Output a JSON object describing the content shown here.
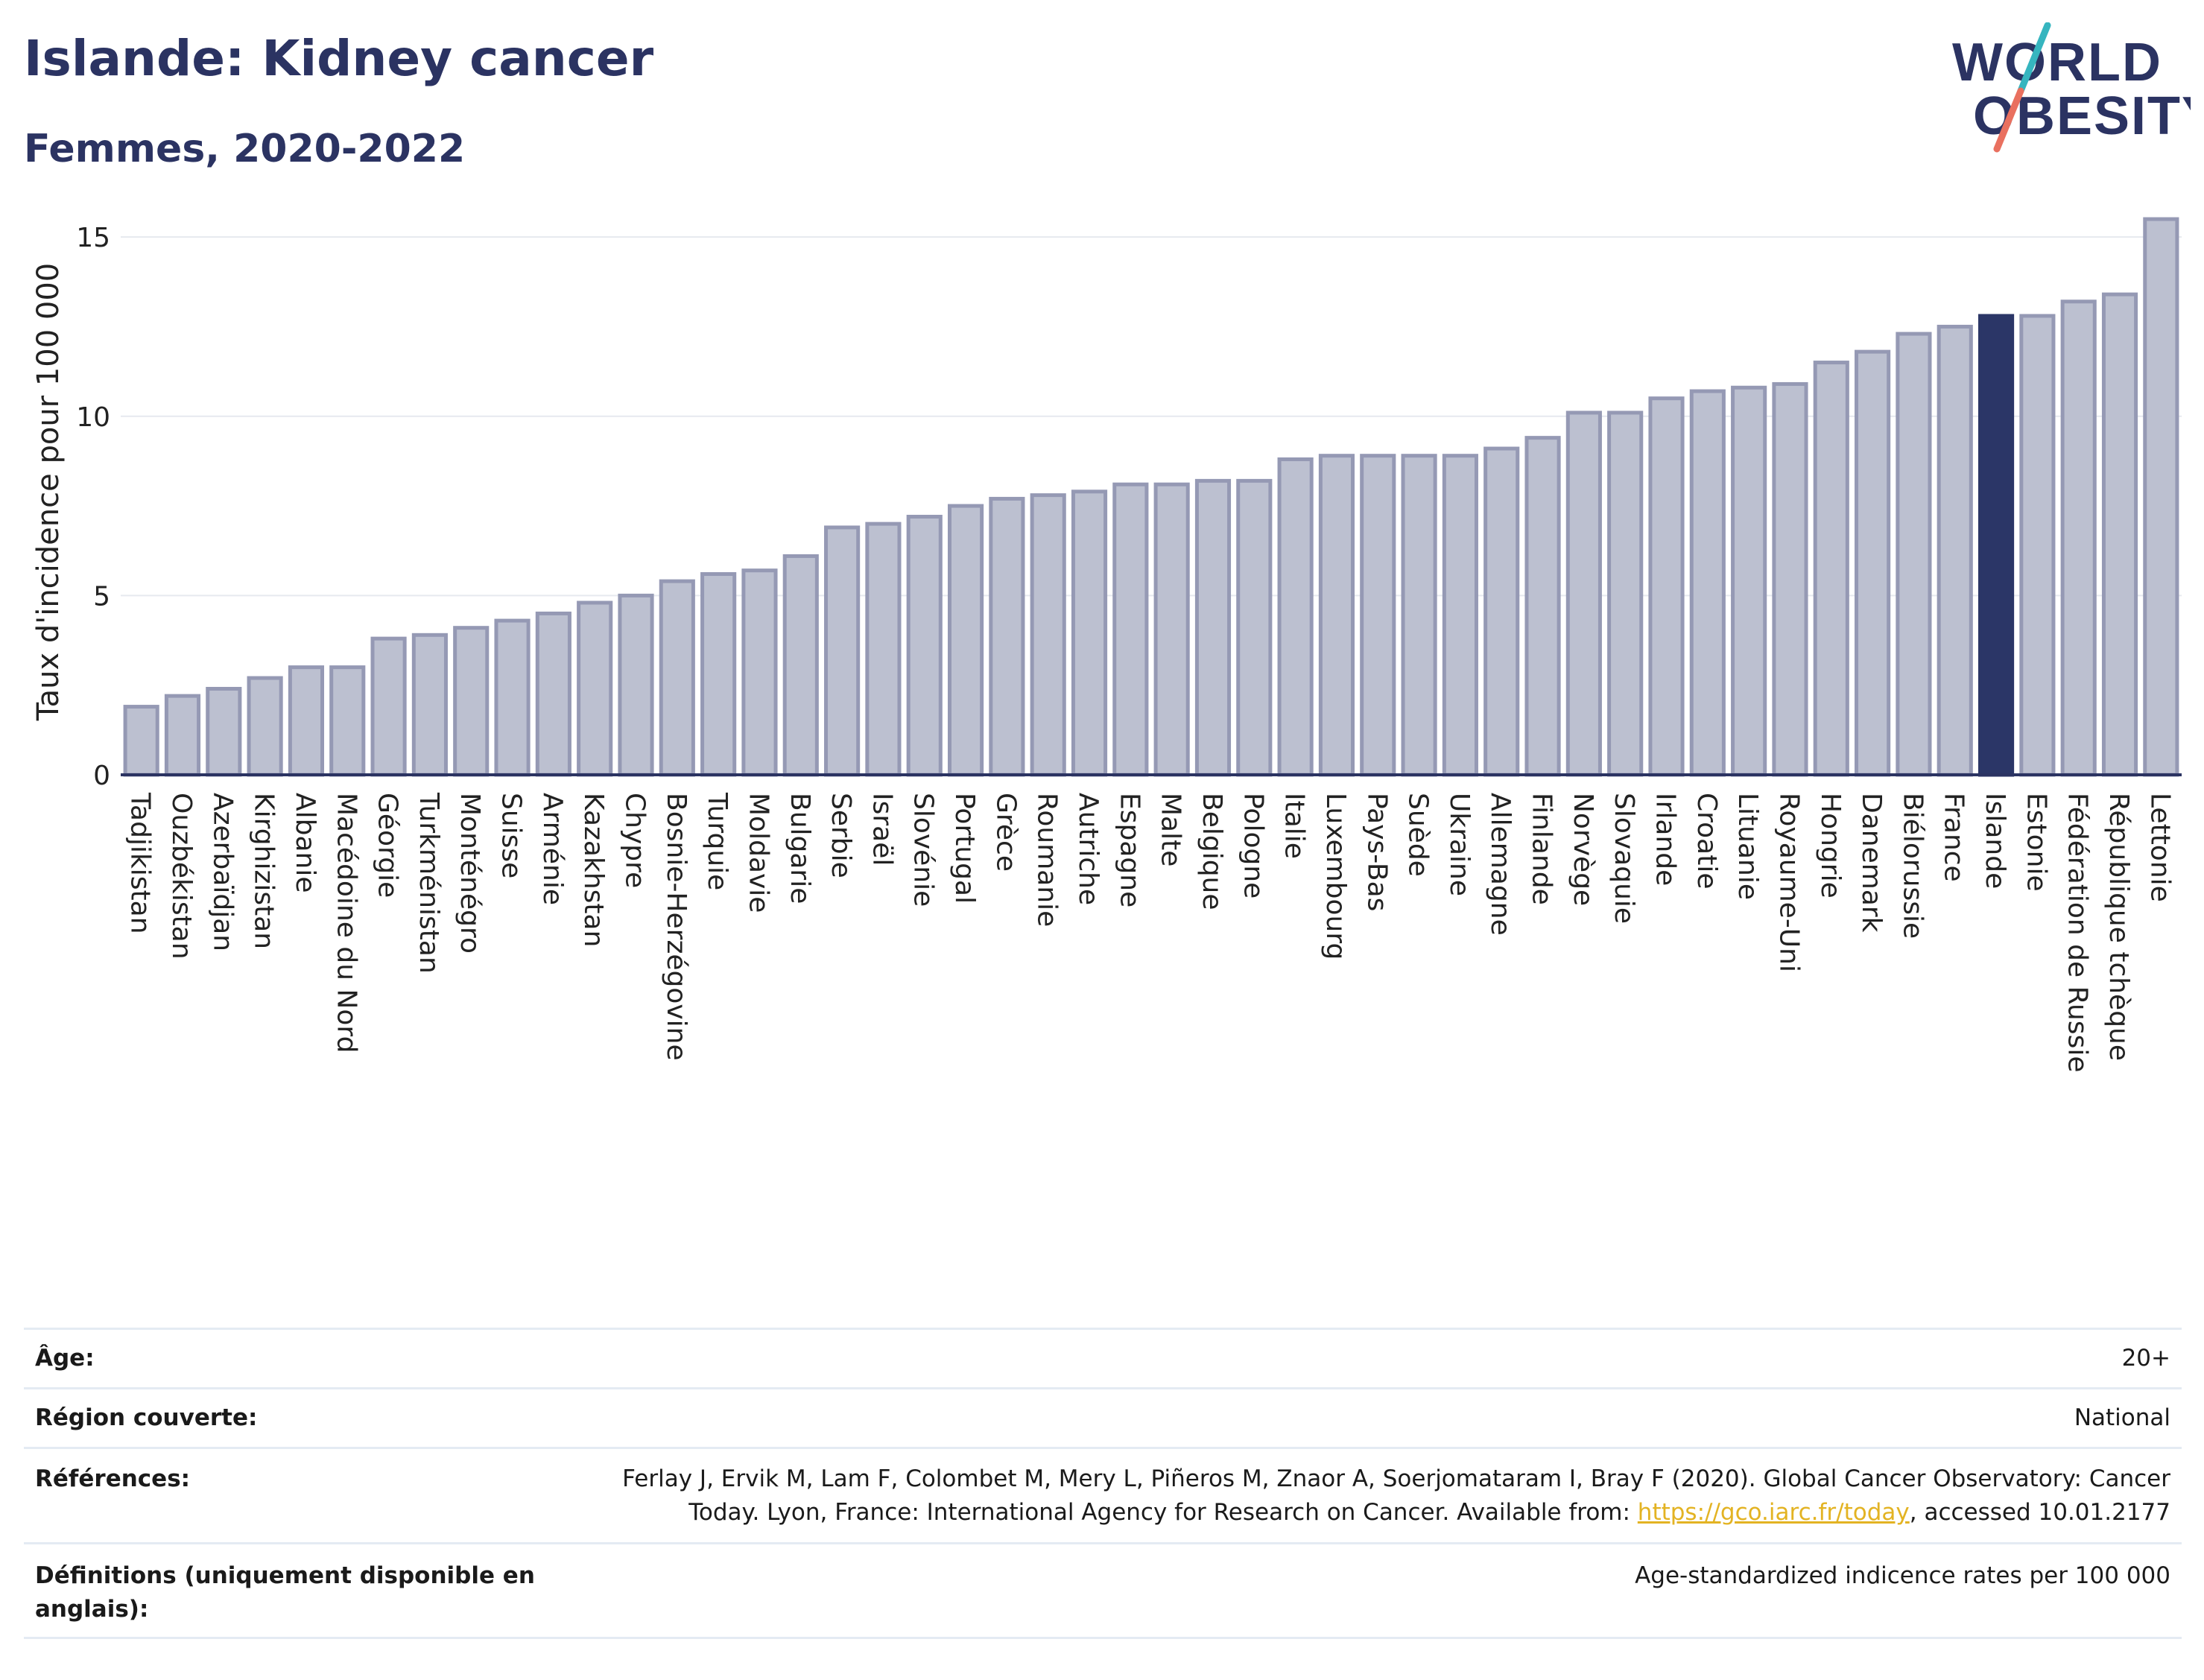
{
  "header": {
    "title": "Islande: Kidney cancer",
    "subtitle": "Femmes, 2020-2022",
    "logo_line1": "WORLD",
    "logo_line2": "OBESITY"
  },
  "chart_data": {
    "type": "bar",
    "ylabel": "Taux d'incidence pour 100 000",
    "xlabel": "",
    "ylim": [
      0,
      16
    ],
    "yticks": [
      0,
      5,
      10,
      15
    ],
    "grid": true,
    "highlight": "Islande",
    "colors": {
      "bar": "#bcc0d0",
      "bar_edge": "#9599b4",
      "highlight": "#2b3667",
      "grid": "#e6e9ef"
    },
    "categories": [
      "Tadjikistan",
      "Ouzbékistan",
      "Azerbaïdjan",
      "Kirghizistan",
      "Albanie",
      "Macédoine du Nord",
      "Géorgie",
      "Turkménistan",
      "Monténégro",
      "Suisse",
      "Arménie",
      "Kazakhstan",
      "Chypre",
      "Bosnie-Herzégovine",
      "Turquie",
      "Moldavie",
      "Bulgarie",
      "Serbie",
      "Israël",
      "Slovénie",
      "Portugal",
      "Grèce",
      "Roumanie",
      "Autriche",
      "Espagne",
      "Malte",
      "Belgique",
      "Pologne",
      "Italie",
      "Luxembourg",
      "Pays-Bas",
      "Suède",
      "Ukraine",
      "Allemagne",
      "Finlande",
      "Norvège",
      "Slovaquie",
      "Irlande",
      "Croatie",
      "Lituanie",
      "Royaume-Uni",
      "Hongrie",
      "Danemark",
      "Biélorussie",
      "France",
      "Islande",
      "Estonie",
      "Fédération de Russie",
      "République tchèque",
      "Lettonie"
    ],
    "values": [
      1.9,
      2.2,
      2.4,
      2.7,
      3.0,
      3.0,
      3.8,
      3.9,
      4.1,
      4.3,
      4.5,
      4.8,
      5.0,
      5.4,
      5.6,
      5.7,
      6.1,
      6.9,
      7.0,
      7.2,
      7.5,
      7.7,
      7.8,
      7.9,
      8.1,
      8.1,
      8.2,
      8.2,
      8.8,
      8.9,
      8.9,
      8.9,
      8.9,
      9.1,
      9.4,
      10.1,
      10.1,
      10.5,
      10.7,
      10.8,
      10.9,
      11.5,
      11.8,
      12.3,
      12.5,
      12.8,
      12.8,
      13.2,
      13.4,
      15.5
    ]
  },
  "info": {
    "age_label": "Âge:",
    "age_value": "20+",
    "region_label": "Région couverte:",
    "region_value": "National",
    "refs_label": "Références:",
    "refs_line1": "Ferlay J, Ervik M, Lam F, Colombet M, Mery L, Piñeros M, Znaor A, Soerjomataram I, Bray F (2020). Global Cancer Observatory: Cancer",
    "refs_line2_prefix": "Today. Lyon, France: International Agency for Research on Cancer. Available from: ",
    "refs_link": "https://gco.iarc.fr/today",
    "refs_line2_suffix": ", accessed 10.01.2177",
    "defs_label": "Définitions (uniquement disponible en anglais):",
    "defs_value": "Age-standardized indicence rates per 100 000"
  }
}
